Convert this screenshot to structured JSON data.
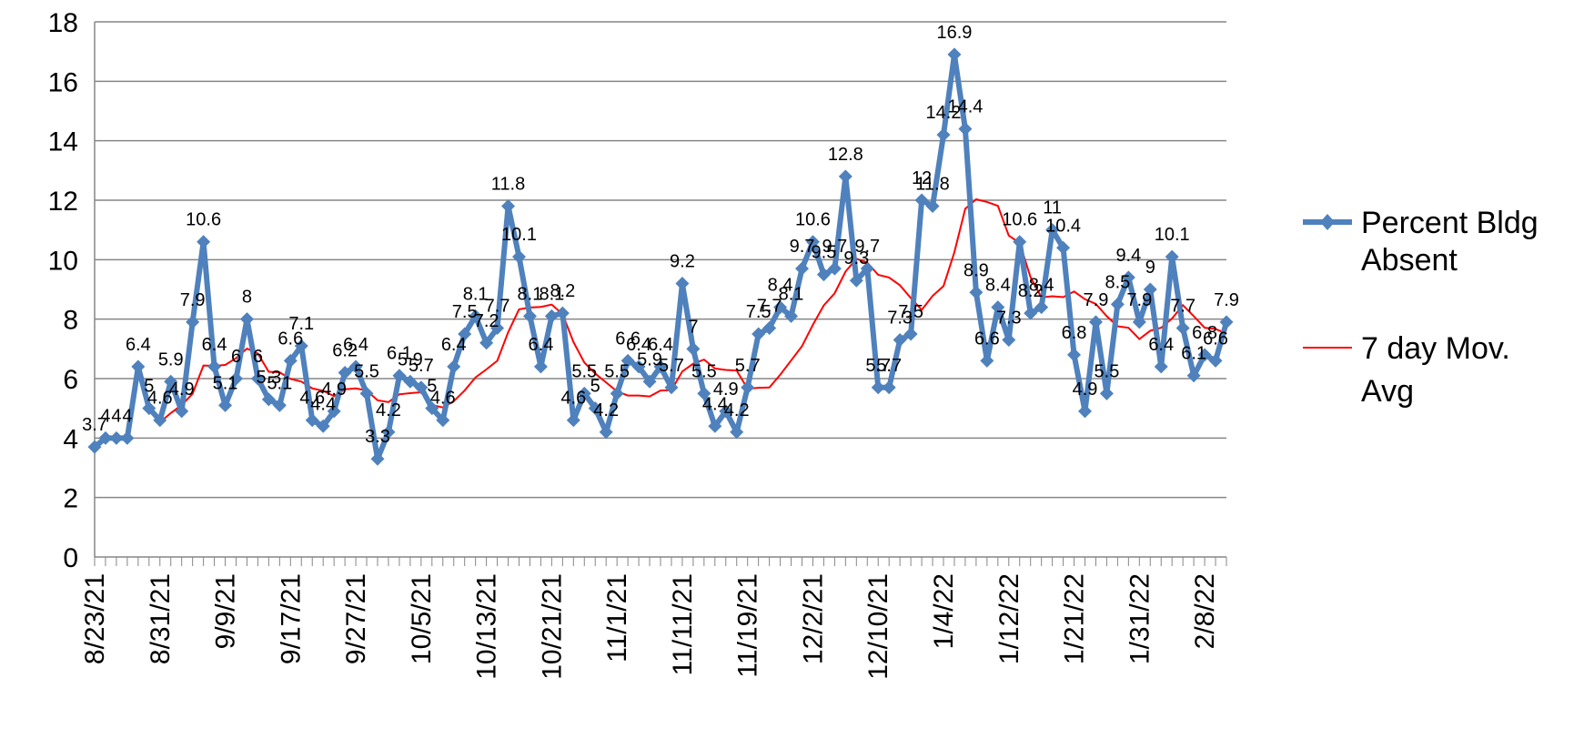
{
  "chart_data": {
    "type": "line",
    "title": "",
    "xlabel": "",
    "ylabel": "",
    "ylim": [
      0,
      18
    ],
    "yticks": [
      0,
      2,
      4,
      6,
      8,
      10,
      12,
      14,
      16,
      18
    ],
    "grid": "horizontal",
    "legend_position": "right",
    "x_tick_labels": [
      {
        "index": 0,
        "label": "8/23/21"
      },
      {
        "index": 6,
        "label": "8/31/21"
      },
      {
        "index": 12,
        "label": "9/9/21"
      },
      {
        "index": 18,
        "label": "9/17/21"
      },
      {
        "index": 24,
        "label": "9/27/21"
      },
      {
        "index": 30,
        "label": "10/5/21"
      },
      {
        "index": 36,
        "label": "10/13/21"
      },
      {
        "index": 42,
        "label": "10/21/21"
      },
      {
        "index": 48,
        "label": "11/1/21"
      },
      {
        "index": 54,
        "label": "11/11/21"
      },
      {
        "index": 60,
        "label": "11/19/21"
      },
      {
        "index": 66,
        "label": "12/2/21"
      },
      {
        "index": 72,
        "label": "12/10/21"
      },
      {
        "index": 78,
        "label": "1/4/22"
      },
      {
        "index": 84,
        "label": "1/12/22"
      },
      {
        "index": 90,
        "label": "1/21/22"
      },
      {
        "index": 96,
        "label": "1/31/22"
      },
      {
        "index": 102,
        "label": "2/8/22"
      }
    ],
    "series": [
      {
        "name": "Percent Bldg Absent",
        "color": "#4F81BD",
        "marker": "diamond",
        "values": [
          3.7,
          4,
          4,
          4,
          6.4,
          5,
          4.6,
          5.9,
          4.9,
          7.9,
          10.6,
          6.4,
          5.1,
          6,
          8,
          6,
          5.3,
          5.1,
          6.6,
          7.1,
          4.6,
          4.4,
          4.9,
          6.2,
          6.4,
          5.5,
          3.3,
          4.2,
          6.1,
          5.9,
          5.7,
          5,
          4.6,
          6.4,
          7.5,
          8.1,
          7.2,
          7.7,
          11.8,
          10.1,
          8.1,
          6.4,
          8.1,
          8.2,
          4.6,
          5.5,
          5,
          4.2,
          5.5,
          6.6,
          6.4,
          5.9,
          6.4,
          5.7,
          9.2,
          7,
          5.5,
          4.4,
          4.9,
          4.2,
          5.7,
          7.5,
          7.7,
          8.4,
          8.1,
          9.7,
          10.6,
          9.5,
          9.7,
          12.8,
          9.3,
          9.7,
          5.7,
          5.7,
          7.3,
          7.5,
          12,
          11.8,
          14.2,
          16.9,
          14.4,
          8.9,
          6.6,
          8.4,
          7.3,
          10.6,
          8.2,
          8.4,
          11,
          10.4,
          6.8,
          4.9,
          7.9,
          5.5,
          8.5,
          9.4,
          7.9,
          9,
          6.4,
          10.1,
          7.7,
          6.1,
          6.8,
          6.6,
          7.9
        ]
      },
      {
        "name": "7 day Mov. Avg",
        "color": "#FF0000",
        "values": [
          null,
          null,
          null,
          null,
          null,
          null,
          4.53,
          4.84,
          5.11,
          5.49,
          6.44,
          6.43,
          6.46,
          6.69,
          7.01,
          6.84,
          6.23,
          6.21,
          5.99,
          5.9,
          5.67,
          5.59,
          5.41,
          5.64,
          5.67,
          5.6,
          5.27,
          5.21,
          5.47,
          5.51,
          5.54,
          5.11,
          5.03,
          5.24,
          5.6,
          6.04,
          6.31,
          6.6,
          7.56,
          8.33,
          8.39,
          8.41,
          8.49,
          8.17,
          7.23,
          6.54,
          6.17,
          5.87,
          5.57,
          5.43,
          5.43,
          5.4,
          5.6,
          5.61,
          6.24,
          6.5,
          6.64,
          6.34,
          6.29,
          6.27,
          5.66,
          5.69,
          5.7,
          6.13,
          6.61,
          7.09,
          7.81,
          8.46,
          8.87,
          9.6,
          10.03,
          9.9,
          9.49,
          9.4,
          9.14,
          8.71,
          8.31,
          8.78,
          9.11,
          10.25,
          11.71,
          12.03,
          11.94,
          11.81,
          10.81,
          10.56,
          9.41,
          8.73,
          8.77,
          8.74,
          8.93,
          8.67,
          8.51,
          8.1,
          7.76,
          7.71,
          7.33,
          7.61,
          7.71,
          8.02,
          8.47,
          8.1,
          7.71,
          7.67,
          7.51
        ]
      }
    ],
    "data_labels": [
      "3.7",
      "4",
      "4",
      "4",
      "6.4",
      "5",
      "4.6",
      "5.9",
      "4.9",
      "7.9",
      "10.6",
      "6.4",
      "5.1",
      "6",
      "8",
      "6",
      "5.3",
      "5.1",
      "6.6",
      "7.1",
      "4.6",
      "4.4",
      "4.9",
      "6.2",
      "6.4",
      "5.5",
      "3.3",
      "4.2",
      "6.1",
      "5.9",
      "5.7",
      "5",
      "4.6",
      "6.4",
      "7.5",
      "8.1",
      "7.2",
      "7.7",
      "11.8",
      "10.1",
      "8.1",
      "6.4",
      "8.1",
      "8.2",
      "4.6",
      "5.5",
      "5",
      "4.2",
      "5.5",
      "6.6",
      "6.4",
      "5.9",
      "6.4",
      "5.7",
      "9.2",
      "7",
      "5.5",
      "4.4",
      "4.9",
      "4.2",
      "5.7",
      "7.5",
      "7.7",
      "8.4",
      "8.1",
      "9.7",
      "10.6",
      "9.5",
      "9.7",
      "12.8",
      "9.3",
      "9.7",
      "5.7",
      "5.7",
      "7.3",
      "7.5",
      "12",
      "11.8",
      "14.2",
      "16.9",
      "14.4",
      "8.9",
      "6.6",
      "8.4",
      "7.3",
      "10.6",
      "8.2",
      "8.4",
      "11",
      "10.4",
      "6.8",
      "4.9",
      "7.9",
      "5.5",
      "8.5",
      "9.4",
      "7.9",
      "9",
      "6.4",
      "10.1",
      "7.7",
      "6.1",
      "6.8",
      "6.6",
      "7.9"
    ]
  },
  "legend": {
    "series1_line1": "Percent Bldg",
    "series1_line2": "Absent",
    "series2_line1": "7 day Mov.",
    "series2_line2": "Avg"
  }
}
